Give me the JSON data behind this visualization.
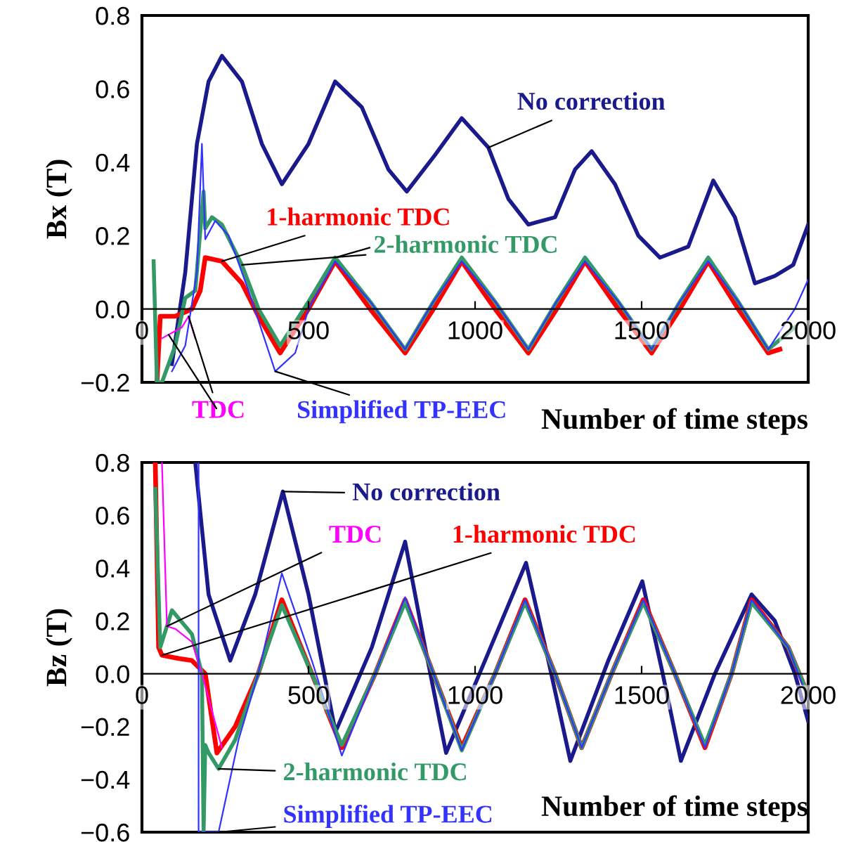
{
  "chart_data": [
    {
      "type": "line",
      "xlabel": "Number of time steps",
      "ylabel": "Bx (T)",
      "xlim": [
        0,
        2000
      ],
      "ylim": [
        -0.2,
        0.8
      ],
      "xticks": [
        0,
        500,
        1000,
        1500,
        2000
      ],
      "yticks": [
        {
          "value": -0.2,
          "label": "−0.2"
        },
        {
          "value": 0,
          "label": "0.0"
        },
        {
          "value": 0.2,
          "label": "0.2"
        },
        {
          "value": 0.4,
          "label": "0.4"
        },
        {
          "value": 0.6,
          "label": "0.6"
        },
        {
          "value": 0.8,
          "label": "0.8"
        }
      ],
      "series": [
        {
          "name": "No correction",
          "color": "#1a1a8c",
          "x": [
            90,
            130,
            165,
            200,
            240,
            300,
            360,
            420,
            500,
            580,
            660,
            740,
            795,
            880,
            960,
            1040,
            1100,
            1160,
            1240,
            1300,
            1350,
            1420,
            1490,
            1555,
            1640,
            1715,
            1780,
            1840,
            1900,
            1955,
            2000
          ],
          "values": [
            -0.15,
            0.1,
            0.45,
            0.62,
            0.69,
            0.62,
            0.45,
            0.34,
            0.45,
            0.62,
            0.55,
            0.38,
            0.32,
            0.42,
            0.52,
            0.44,
            0.3,
            0.23,
            0.25,
            0.38,
            0.43,
            0.34,
            0.2,
            0.14,
            0.17,
            0.35,
            0.25,
            0.07,
            0.09,
            0.12,
            0.23
          ]
        },
        {
          "name": "TDC",
          "color": "#ff00ff",
          "x": [
            60,
            80,
            100,
            120,
            140,
            160
          ],
          "values": [
            -0.08,
            -0.07,
            -0.06,
            -0.05,
            -0.02,
            -0.08
          ]
        },
        {
          "name": "1-harmonic TDC",
          "color": "#ff0000",
          "x": [
            45,
            55,
            100,
            150,
            175,
            190,
            240,
            300,
            350,
            415,
            500,
            580,
            685,
            790,
            875,
            960,
            1060,
            1160,
            1245,
            1330,
            1430,
            1530,
            1615,
            1700,
            1790,
            1880,
            1915
          ],
          "values": [
            -0.2,
            -0.02,
            -0.02,
            0.0,
            0.05,
            0.14,
            0.13,
            0.07,
            -0.02,
            -0.12,
            0.0,
            0.13,
            0.0,
            -0.12,
            0.0,
            0.13,
            0.0,
            -0.12,
            0.0,
            0.13,
            0.0,
            -0.12,
            0.0,
            0.13,
            0.0,
            -0.12,
            -0.11
          ]
        },
        {
          "name": "2-harmonic TDC",
          "color": "#339966",
          "x": [
            35,
            45,
            60,
            100,
            130,
            160,
            185,
            190,
            210,
            240,
            300,
            350,
            415,
            500,
            580,
            685,
            790,
            875,
            960,
            1060,
            1160,
            1245,
            1330,
            1430,
            1530,
            1615,
            1700,
            1790,
            1880,
            1960
          ],
          "values": [
            0.13,
            -0.2,
            -0.2,
            -0.1,
            0.03,
            0.05,
            0.32,
            0.22,
            0.25,
            0.23,
            0.12,
            0.0,
            -0.1,
            0.02,
            0.14,
            0.02,
            -0.11,
            0.02,
            0.14,
            0.02,
            -0.11,
            0.02,
            0.14,
            0.02,
            -0.11,
            0.02,
            0.14,
            0.02,
            -0.11,
            -0.05
          ]
        },
        {
          "name": "Simplified TP-EEC",
          "color": "#3333ff",
          "x": [
            90,
            130,
            165,
            180,
            190,
            220,
            260,
            320,
            400,
            460,
            500,
            580,
            685,
            790,
            875,
            960,
            1060,
            1160,
            1245,
            1330,
            1430,
            1530,
            1615,
            1700,
            1790,
            1880,
            1960,
            2000
          ],
          "values": [
            -0.17,
            -0.1,
            0.1,
            0.45,
            0.19,
            0.24,
            0.2,
            0.05,
            -0.17,
            -0.12,
            0.0,
            0.13,
            0.02,
            -0.11,
            0.02,
            0.13,
            0.02,
            -0.11,
            0.02,
            0.13,
            0.02,
            -0.11,
            0.02,
            0.13,
            0.02,
            -0.11,
            0.0,
            0.08
          ]
        }
      ]
    },
    {
      "type": "line",
      "xlabel": "Number of time steps",
      "ylabel": "Bz (T)",
      "xlim": [
        0,
        2000
      ],
      "ylim": [
        -0.6,
        0.8
      ],
      "xticks": [
        0,
        500,
        1000,
        1500,
        2000
      ],
      "yticks": [
        {
          "value": -0.6,
          "label": "−0.6"
        },
        {
          "value": -0.4,
          "label": "−0.4"
        },
        {
          "value": -0.2,
          "label": "−0.2"
        },
        {
          "value": 0,
          "label": "0.0"
        },
        {
          "value": 0.2,
          "label": "0.2"
        },
        {
          "value": 0.4,
          "label": "0.4"
        },
        {
          "value": 0.6,
          "label": "0.6"
        },
        {
          "value": 0.8,
          "label": "0.8"
        }
      ],
      "series": [
        {
          "name": "No correction",
          "color": "#1a1a8c",
          "x": [
            160,
            200,
            265,
            340,
            423,
            500,
            581,
            690,
            790,
            850,
            913,
            1030,
            1153,
            1220,
            1286,
            1400,
            1502,
            1560,
            1618,
            1720,
            1830,
            1900,
            1960,
            2000
          ],
          "values": [
            0.8,
            0.3,
            0.05,
            0.3,
            0.69,
            0.3,
            -0.22,
            0.1,
            0.5,
            0.1,
            -0.3,
            0.05,
            0.42,
            0.05,
            -0.33,
            0.05,
            0.35,
            0.02,
            -0.33,
            0.0,
            0.3,
            0.2,
            0.0,
            -0.18
          ]
        },
        {
          "name": "TDC",
          "color": "#ff00ff",
          "x": [
            60,
            75,
            100,
            150,
            180,
            240
          ],
          "values": [
            0.8,
            0.18,
            0.17,
            0.12,
            0.0,
            -0.28
          ]
        },
        {
          "name": "1-harmonic TDC",
          "color": "#ff0000",
          "x": [
            40,
            50,
            60,
            100,
            150,
            190,
            225,
            280,
            349,
            420,
            510,
            600,
            700,
            790,
            875,
            960,
            1060,
            1150,
            1240,
            1320,
            1410,
            1505,
            1600,
            1690,
            1770,
            1830,
            1940,
            1990
          ],
          "values": [
            0.8,
            0.1,
            0.07,
            0.06,
            0.05,
            0.0,
            -0.3,
            -0.2,
            0.0,
            0.28,
            0.0,
            -0.28,
            0.0,
            0.28,
            0.0,
            -0.28,
            0.0,
            0.28,
            0.0,
            -0.28,
            0.0,
            0.28,
            0.0,
            -0.28,
            0.0,
            0.28,
            0.1,
            -0.05
          ]
        },
        {
          "name": "2-harmonic TDC",
          "color": "#339966",
          "x": [
            40,
            55,
            90,
            150,
            180,
            185,
            190,
            200,
            230,
            280,
            349,
            420,
            510,
            600,
            700,
            790,
            875,
            960,
            1060,
            1150,
            1240,
            1320,
            1410,
            1505,
            1600,
            1690,
            1770,
            1830,
            1940,
            1990
          ],
          "values": [
            0.7,
            0.1,
            0.24,
            0.15,
            0.0,
            -0.6,
            -0.27,
            -0.3,
            -0.36,
            -0.25,
            0.0,
            0.26,
            0.0,
            -0.27,
            0.0,
            0.27,
            0.0,
            -0.29,
            0.0,
            0.27,
            0.0,
            -0.28,
            0.0,
            0.27,
            0.0,
            -0.27,
            0.0,
            0.27,
            0.1,
            -0.05
          ]
        },
        {
          "name": "Simplified TP-EEC",
          "color": "#3333ff",
          "x": [
            170,
            170,
            230,
            290,
            349,
            420,
            510,
            600,
            700,
            790,
            875,
            960,
            1060,
            1150,
            1240,
            1320,
            1410,
            1505,
            1600,
            1690,
            1770,
            1830,
            1940,
            2000
          ],
          "values": [
            0.8,
            -0.6,
            -0.6,
            -0.25,
            0.0,
            0.38,
            0.05,
            -0.31,
            0.0,
            0.29,
            0.0,
            -0.29,
            0.0,
            0.28,
            0.0,
            -0.28,
            0.0,
            0.28,
            0.0,
            -0.28,
            0.0,
            0.28,
            0.1,
            -0.1
          ]
        }
      ]
    }
  ]
}
